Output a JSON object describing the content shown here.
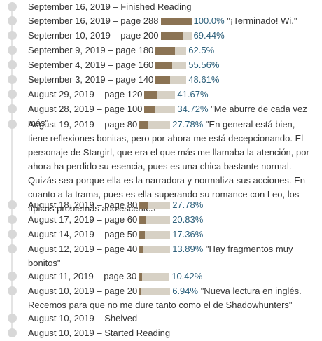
{
  "colors": {
    "bar_fill": "#8b7354",
    "bar_track": "#d7d1c5",
    "percent_text": "#2c5f7a",
    "timeline_dot": "#d8d8d8"
  },
  "entries": [
    {
      "date": "September 16, 2019",
      "sep": "–",
      "status": "Finished Reading"
    },
    {
      "date": "September 16, 2019",
      "sep": "–",
      "status": "page 288",
      "progress": 1.0,
      "percent": "100.0%",
      "comment": "\"¡Terminado! Wi.\""
    },
    {
      "date": "September 10, 2019",
      "sep": "–",
      "status": "page 200",
      "progress": 0.6944,
      "percent": "69.44%"
    },
    {
      "date": "September 9, 2019",
      "sep": "–",
      "status": "page 180",
      "progress": 0.625,
      "percent": "62.5%"
    },
    {
      "date": "September 4, 2019",
      "sep": "–",
      "status": "page 160",
      "progress": 0.5556,
      "percent": "55.56%"
    },
    {
      "date": "September 3, 2019",
      "sep": "–",
      "status": "page 140",
      "progress": 0.4861,
      "percent": "48.61%"
    },
    {
      "date": "August 29, 2019",
      "sep": "–",
      "status": "page 120",
      "progress": 0.4167,
      "percent": "41.67%"
    },
    {
      "date": "August 28, 2019",
      "sep": "–",
      "status": "page 100",
      "progress": 0.3472,
      "percent": "34.72%",
      "comment": "\"Me aburre de cada vez más\""
    },
    {
      "date": "August 19, 2019",
      "sep": "–",
      "status": "page 80",
      "progress": 0.2778,
      "percent": "27.78%",
      "comment": "\"En general está bien, tiene reflexiones bonitas, pero por ahora me está decepcionando. El personaje de Stargirl, que era el que más me llamaba la atención, por ahora ha perdido su esencia, pues es una chica bastante normal. Quizás sea porque ella es la narradora y normaliza sus acciones. En cuanto a la trama, pues es ella superando su romance con Leo, los típicos problemas adolescentes\""
    },
    {
      "date": "August 18, 2019",
      "sep": "–",
      "status": "page 80",
      "progress": 0.2778,
      "percent": "27.78%"
    },
    {
      "date": "August 17, 2019",
      "sep": "–",
      "status": "page 60",
      "progress": 0.2083,
      "percent": "20.83%"
    },
    {
      "date": "August 14, 2019",
      "sep": "–",
      "status": "page 50",
      "progress": 0.1736,
      "percent": "17.36%"
    },
    {
      "date": "August 12, 2019",
      "sep": "–",
      "status": "page 40",
      "progress": 0.1389,
      "percent": "13.89%",
      "comment": "\"Hay fragmentos muy bonitos\""
    },
    {
      "date": "August 11, 2019",
      "sep": "–",
      "status": "page 30",
      "progress": 0.1042,
      "percent": "10.42%"
    },
    {
      "date": "August 10, 2019",
      "sep": "–",
      "status": "page 20",
      "progress": 0.0694,
      "percent": "6.94%",
      "comment": "\"Nueva lectura en inglés. Recemos para que no me dure tanto como el de Shadowhunters\""
    },
    {
      "date": "August 10, 2019",
      "sep": "–",
      "status": "Shelved"
    },
    {
      "date": "August 10, 2019",
      "sep": "–",
      "status": "Started Reading"
    }
  ]
}
